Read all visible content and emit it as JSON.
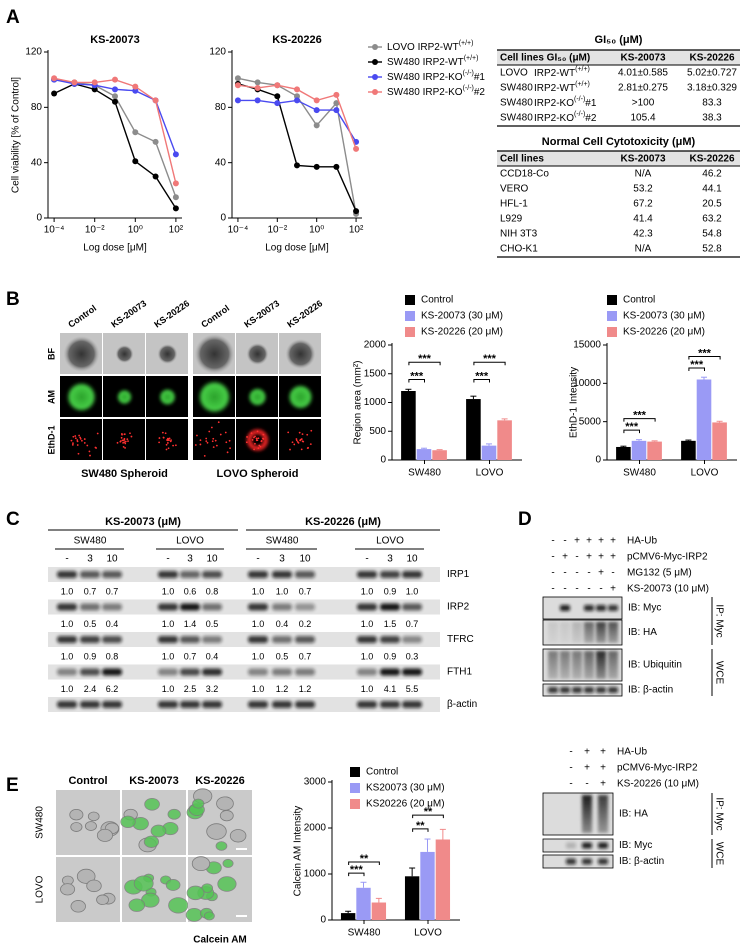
{
  "panel_labels": [
    "A",
    "B",
    "C",
    "D",
    "E"
  ],
  "chart_data": [
    {
      "type": "line",
      "title": "KS-20073",
      "ylabel": "Cell viability [% of Control]",
      "xlabel": "Log dose [μM]",
      "log_x": true,
      "x": [
        0.0001,
        0.001,
        0.01,
        0.1,
        1,
        10,
        100
      ],
      "xlim": [
        5e-05,
        200
      ],
      "xticks": [
        {
          "value": 0.0001,
          "label": "10⁻⁴"
        },
        {
          "value": 0.01,
          "label": "10⁻²"
        },
        {
          "value": 1,
          "label": "10⁰"
        },
        {
          "value": 100,
          "label": "10²"
        }
      ],
      "ylim": [
        0,
        120
      ],
      "yticks": [
        0,
        40,
        80,
        120
      ],
      "series": [
        {
          "name": "LOVO IRP2-WT(+/+)",
          "color": "#8c8c8c",
          "values": [
            100,
            98,
            96,
            88,
            62,
            55,
            15
          ]
        },
        {
          "name": "SW480 IRP2-WT(+/+)",
          "color": "#000000",
          "values": [
            90,
            97,
            93,
            84,
            41,
            30,
            7
          ]
        },
        {
          "name": "SW480 IRP2-KO(-/-)#1",
          "color": "#4a4af0",
          "values": [
            100,
            97,
            96,
            93,
            92,
            85,
            46
          ]
        },
        {
          "name": "SW480 IRP2-KO(-/-)#2",
          "color": "#f07878",
          "values": [
            101,
            98,
            98,
            100,
            95,
            85,
            25
          ]
        }
      ]
    },
    {
      "type": "line",
      "title": "KS-20226",
      "xlabel": "Log dose [μM]",
      "log_x": true,
      "x": [
        0.0001,
        0.001,
        0.01,
        0.1,
        1,
        10,
        100
      ],
      "xlim": [
        5e-05,
        200
      ],
      "xticks": [
        {
          "value": 0.0001,
          "label": "10⁻⁴"
        },
        {
          "value": 0.01,
          "label": "10⁻²"
        },
        {
          "value": 1,
          "label": "10⁰"
        },
        {
          "value": 100,
          "label": "10²"
        }
      ],
      "ylim": [
        0,
        120
      ],
      "yticks": [
        0,
        40,
        80,
        120
      ],
      "series": [
        {
          "color": "#8c8c8c",
          "values": [
            101,
            98,
            96,
            88,
            67,
            83,
            3
          ]
        },
        {
          "color": "#000000",
          "values": [
            97,
            93,
            88,
            38,
            37,
            37,
            5
          ]
        },
        {
          "color": "#4a4af0",
          "values": [
            85,
            85,
            83,
            85,
            78,
            78,
            55
          ]
        },
        {
          "color": "#f07878",
          "values": [
            96,
            94,
            96,
            93,
            85,
            89,
            50
          ]
        }
      ]
    },
    {
      "type": "bar",
      "ylabel": "Region area (mm²)",
      "categories": [
        "SW480",
        "LOVO"
      ],
      "ylim": [
        0,
        2000
      ],
      "yticks": [
        0,
        500,
        1000,
        1500,
        2000
      ],
      "series": [
        {
          "name": "Control",
          "color": "#000000",
          "values": [
            1200,
            1060
          ],
          "errors": [
            30,
            50
          ]
        },
        {
          "name": "KS-20073 (30 μM)",
          "color": "#9a9af5",
          "values": [
            190,
            250
          ],
          "errors": [
            15,
            30
          ]
        },
        {
          "name": "KS-20226 (20 μM)",
          "color": "#f08a8a",
          "values": [
            170,
            690
          ],
          "errors": [
            10,
            25
          ]
        }
      ],
      "annotations": [
        "***",
        "***",
        "***",
        "***"
      ]
    },
    {
      "type": "bar",
      "ylabel": "EthD-1 Intensity",
      "categories": [
        "SW480",
        "LOVO"
      ],
      "ylim": [
        0,
        15000
      ],
      "yticks": [
        0,
        5000,
        10000,
        15000
      ],
      "series": [
        {
          "name": "Control",
          "color": "#000000",
          "values": [
            1700,
            2500
          ],
          "errors": [
            100,
            100
          ]
        },
        {
          "name": "KS-20073 (30 μM)",
          "color": "#9a9af5",
          "values": [
            2500,
            10500
          ],
          "errors": [
            150,
            300
          ]
        },
        {
          "name": "KS-20226 (20 μM)",
          "color": "#f08a8a",
          "values": [
            2400,
            4900
          ],
          "errors": [
            100,
            150
          ]
        }
      ],
      "annotations": [
        "***",
        "***",
        "***",
        "***"
      ]
    },
    {
      "type": "bar",
      "ylabel": "Calcein AM Intensity",
      "categories": [
        "SW480",
        "LOVO"
      ],
      "ylim": [
        0,
        3000
      ],
      "yticks": [
        0,
        1000,
        2000,
        3000
      ],
      "series": [
        {
          "name": "Control",
          "color": "#000000",
          "values": [
            150,
            950
          ],
          "errors": [
            40,
            180
          ]
        },
        {
          "name": "KS20073 (30 μM)",
          "color": "#9a9af5",
          "values": [
            700,
            1480
          ],
          "errors": [
            120,
            280
          ]
        },
        {
          "name": "KS20226 (20 μM)",
          "color": "#f08a8a",
          "values": [
            380,
            1750
          ],
          "errors": [
            90,
            220
          ]
        }
      ],
      "annotations": [
        "***",
        "**",
        "**",
        "**"
      ]
    }
  ],
  "tables": [
    {
      "title": "GI₅₀ (μM)",
      "header": [
        "Cell lines GI₅₀ (μM)",
        "KS-20073",
        "KS-20226"
      ],
      "rows": [
        [
          "LOVO",
          "IRP2-WT(+/+)",
          "4.01±0.585",
          "5.02±0.727"
        ],
        [
          "SW480",
          "IRP2-WT(+/+)",
          "2.81±0.275",
          "3.18±0.329"
        ],
        [
          "SW480",
          "IRP2-KO(-/-)#1",
          ">100",
          "83.3"
        ],
        [
          "SW480",
          "IRP2-KO(-/-)#2",
          "105.4",
          "38.3"
        ]
      ]
    },
    {
      "title": "Normal Cell Cytotoxicity (μM)",
      "header": [
        "Cell lines",
        "KS-20073",
        "KS-20226"
      ],
      "rows": [
        [
          "CCD18-Co",
          "N/A",
          "46.2"
        ],
        [
          "VERO",
          "53.2",
          "44.1"
        ],
        [
          "HFL-1",
          "67.2",
          "20.5"
        ],
        [
          "L929",
          "41.4",
          "63.2"
        ],
        [
          "NIH 3T3",
          "42.3",
          "54.8"
        ],
        [
          "CHO-K1",
          "N/A",
          "52.8"
        ]
      ]
    }
  ],
  "panel_b": {
    "columns": [
      "Control",
      "KS-20073",
      "KS-20226"
    ],
    "rows": [
      "BF",
      "AM",
      "EthD-1"
    ],
    "captions": [
      "SW480 Spheroid",
      "LOVO Spheroid"
    ]
  },
  "panel_c": {
    "titles": [
      "KS-20073 (μM)",
      "KS-20226 (μM)"
    ],
    "cell_lines": [
      "SW480",
      "LOVO"
    ],
    "doses": [
      "-",
      "3",
      "10"
    ],
    "proteins": [
      "IRP1",
      "IRP2",
      "TFRC",
      "FTH1",
      "β-actin"
    ],
    "quantification": [
      [
        "1.0",
        "0.7",
        "0.7",
        "1.0",
        "0.6",
        "0.8",
        "1.0",
        "1.0",
        "0.7",
        "1.0",
        "0.9",
        "1.0"
      ],
      [
        "1.0",
        "0.5",
        "0.4",
        "1.0",
        "1.4",
        "0.5",
        "1.0",
        "0.4",
        "0.2",
        "1.0",
        "1.5",
        "0.7"
      ],
      [
        "1.0",
        "0.9",
        "0.8",
        "1.0",
        "0.7",
        "0.4",
        "1.0",
        "0.5",
        "0.7",
        "1.0",
        "0.9",
        "0.3"
      ],
      [
        "1.0",
        "2.4",
        "6.2",
        "1.0",
        "2.5",
        "3.2",
        "1.0",
        "1.2",
        "1.2",
        "1.0",
        "4.1",
        "5.5"
      ]
    ]
  },
  "panel_d": {
    "top": {
      "conditions": [
        {
          "label": "HA-Ub",
          "signs": [
            "-",
            "-",
            "+",
            "+",
            "+",
            "+"
          ]
        },
        {
          "label": "pCMV6-Myc-IRP2",
          "signs": [
            "-",
            "+",
            "-",
            "+",
            "+",
            "+"
          ]
        },
        {
          "label": "MG132 (5 μM)",
          "signs": [
            "-",
            "-",
            "-",
            "-",
            "+",
            "-"
          ]
        },
        {
          "label": "KS-20073 (10 μM)",
          "signs": [
            "-",
            "-",
            "-",
            "-",
            "-",
            "+"
          ]
        }
      ],
      "blots": [
        "IB: Myc",
        "IB: HA",
        "IB: Ubiquitin",
        "IB: β-actin"
      ],
      "groups": [
        "IP: Myc",
        "WCE"
      ]
    },
    "bottom": {
      "conditions": [
        {
          "label": "HA-Ub",
          "signs": [
            "-",
            "+",
            "+"
          ]
        },
        {
          "label": "pCMV6-Myc-IRP2",
          "signs": [
            "-",
            "+",
            "+"
          ]
        },
        {
          "label": "KS-20226 (10 μM)",
          "signs": [
            "-",
            "-",
            "+"
          ]
        }
      ],
      "blots": [
        "IB: HA",
        "IB: Myc",
        "IB: β-actin"
      ],
      "groups": [
        "IP: Myc",
        "WCE"
      ]
    }
  },
  "panel_e": {
    "columns": [
      "Control",
      "KS-20073",
      "KS-20226"
    ],
    "rows": [
      "SW480",
      "LOVO"
    ],
    "stain": "Calcein AM"
  }
}
